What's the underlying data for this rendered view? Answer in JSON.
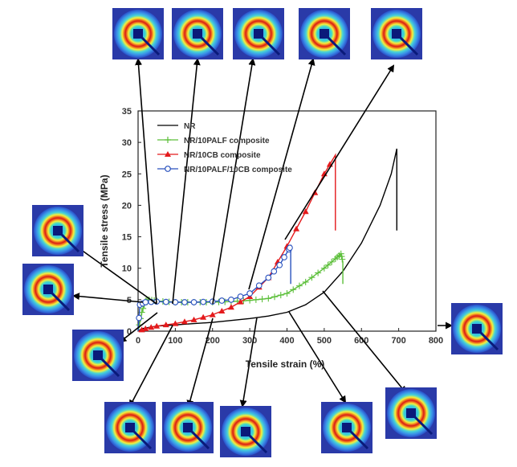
{
  "chart_data": {
    "type": "line",
    "xlabel": "Tensile strain (%)",
    "ylabel": "Tensile stress (MPa)",
    "xlim": [
      0,
      800
    ],
    "ylim": [
      0,
      35
    ],
    "xticks": [
      "0",
      "100",
      "200",
      "300",
      "400",
      "500",
      "600",
      "700",
      "800"
    ],
    "yticks": [
      "0",
      "5",
      "10",
      "15",
      "20",
      "25",
      "30",
      "35"
    ],
    "legend_position": "top-left",
    "grid": false,
    "series": [
      {
        "name": "NR",
        "color": "#000000",
        "marker": "none",
        "x": [
          0,
          10,
          50,
          100,
          150,
          200,
          250,
          300,
          350,
          400,
          450,
          500,
          550,
          600,
          650,
          680,
          695,
          695
        ],
        "y": [
          0,
          0.4,
          0.8,
          1.0,
          1.2,
          1.4,
          1.7,
          2.0,
          2.4,
          3.0,
          4.2,
          6.2,
          9.5,
          14.0,
          20.0,
          25.0,
          29.0,
          16.0
        ]
      },
      {
        "name": "NR/10PALF composite",
        "color": "#5cbf3a",
        "marker": "plus",
        "x": [
          0,
          10,
          20,
          30,
          50,
          100,
          150,
          200,
          250,
          300,
          350,
          400,
          450,
          500,
          530,
          545,
          550,
          550
        ],
        "y": [
          0,
          3.0,
          4.8,
          5.0,
          4.8,
          4.6,
          4.6,
          4.6,
          4.7,
          4.9,
          5.2,
          6.0,
          7.8,
          10.0,
          11.5,
          12.3,
          11.0,
          7.5
        ]
      },
      {
        "name": "NR/10CB composite",
        "color": "#e41a1c",
        "marker": "triangle",
        "x": [
          0,
          20,
          50,
          100,
          150,
          200,
          250,
          300,
          350,
          400,
          450,
          500,
          530,
          530
        ],
        "y": [
          0,
          0.4,
          0.8,
          1.2,
          1.8,
          2.6,
          3.8,
          5.5,
          8.5,
          13.5,
          19.0,
          25.0,
          28.0,
          16.0
        ]
      },
      {
        "name": "NR/10PALF/10CB composite",
        "color": "#2a52be",
        "marker": "circle",
        "x": [
          0,
          5,
          20,
          50,
          100,
          150,
          200,
          250,
          300,
          350,
          380,
          405,
          410,
          410
        ],
        "y": [
          0,
          4.2,
          4.6,
          4.7,
          4.6,
          4.6,
          4.7,
          5.0,
          6.0,
          8.5,
          10.5,
          13.0,
          13.5,
          7.5
        ]
      }
    ]
  },
  "annotations": {
    "count": 14,
    "icon": "saxs-ring-pattern-icon"
  }
}
